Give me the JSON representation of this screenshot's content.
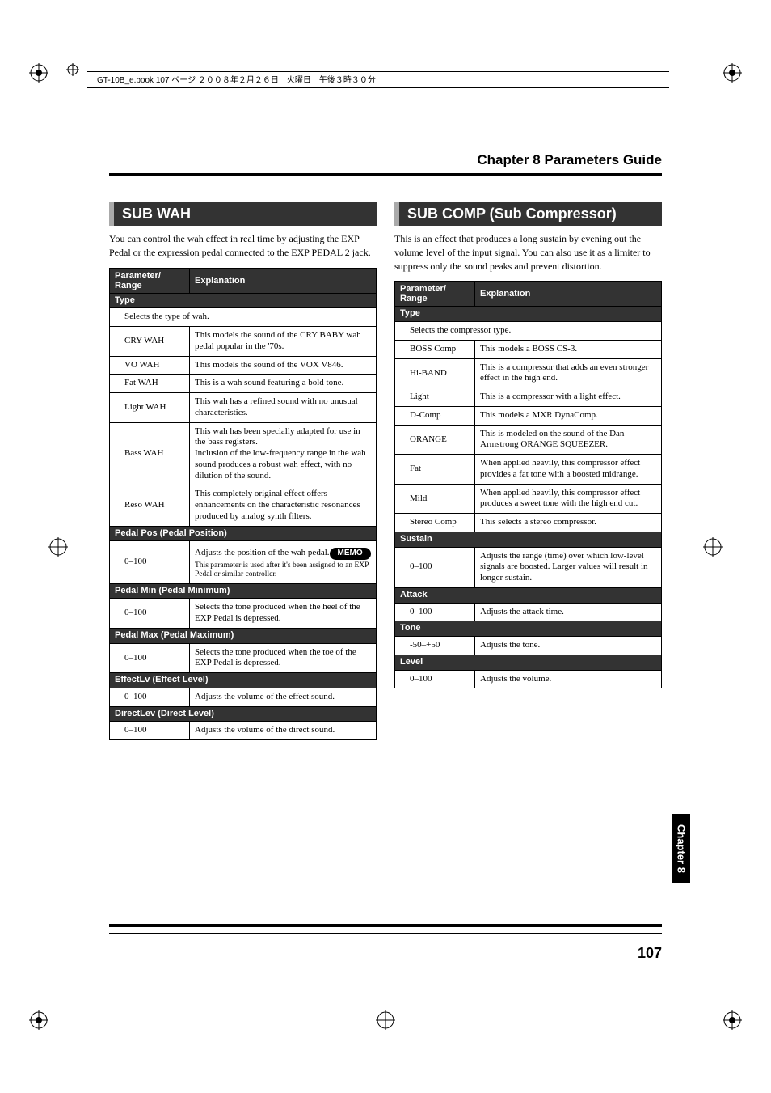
{
  "sheet_info": "GT-10B_e.book  107 ページ  ２００８年２月２６日　火曜日　午後３時３０分",
  "chapter_header": "Chapter 8 Parameters Guide",
  "side_tab": "Chapter 8",
  "page_number": "107",
  "left": {
    "title": "SUB WAH",
    "intro": "You can control the wah effect in real time by adjusting the EXP Pedal or the expression pedal connected to the EXP PEDAL 2 jack.",
    "table_header_param": "Parameter/​Range",
    "table_header_expl": "Explanation",
    "groups": [
      {
        "name": "Type",
        "desc": "Selects the type of wah.",
        "rows": [
          {
            "p": "CRY WAH",
            "e": "This models the sound of the CRY BABY wah pedal popular in the '70s."
          },
          {
            "p": "VO WAH",
            "e": "This models the sound of the VOX V846."
          },
          {
            "p": "Fat WAH",
            "e": "This is a wah sound featuring a bold tone."
          },
          {
            "p": "Light WAH",
            "e": "This wah has a refined sound with no unusual characteristics."
          },
          {
            "p": "Bass WAH",
            "e": "This wah has been specially adapted for use in the bass registers.\nInclusion of the low-frequency range in the wah sound produces a robust wah effect, with no dilution of the sound."
          },
          {
            "p": "Reso WAH",
            "e": "This completely original effect offers enhancements on the characteristic resonances produced by analog synth filters."
          }
        ]
      },
      {
        "name": "Pedal Pos (Pedal Position)",
        "rows": [
          {
            "p": "0–100",
            "e": "Adjusts the position of the wah pedal.",
            "memo": "MEMO",
            "memo_text": "This parameter is used after it's been assigned to an EXP Pedal or similar controller."
          }
        ]
      },
      {
        "name": "Pedal Min (Pedal Minimum)",
        "rows": [
          {
            "p": "0–100",
            "e": "Selects the tone produced when the heel of the EXP Pedal is depressed."
          }
        ]
      },
      {
        "name": "Pedal Max (Pedal Maximum)",
        "rows": [
          {
            "p": "0–100",
            "e": "Selects the tone produced when the toe of the EXP Pedal is depressed."
          }
        ]
      },
      {
        "name": "EffectLv (Effect Level)",
        "rows": [
          {
            "p": "0–100",
            "e": "Adjusts the volume of the effect sound."
          }
        ]
      },
      {
        "name": "DirectLev (Direct Level)",
        "rows": [
          {
            "p": "0–100",
            "e": "Adjusts the volume of the direct sound."
          }
        ]
      }
    ]
  },
  "right": {
    "title": "SUB COMP (Sub Compressor)",
    "intro": "This is an effect that produces a long sustain by evening out the volume level of the input signal. You can also use it as a limiter to suppress only the sound peaks and prevent distortion.",
    "table_header_param": "Parameter/​Range",
    "table_header_expl": "Explanation",
    "groups": [
      {
        "name": "Type",
        "desc": "Selects the compressor type.",
        "rows": [
          {
            "p": "BOSS Comp",
            "e": "This models a BOSS CS-3."
          },
          {
            "p": "Hi-BAND",
            "e": "This is a compressor that adds an even stronger effect in the high end."
          },
          {
            "p": "Light",
            "e": "This is a compressor with a light effect."
          },
          {
            "p": "D-Comp",
            "e": "This models a MXR DynaComp."
          },
          {
            "p": "ORANGE",
            "e": "This is modeled on the sound of the Dan Armstrong ORANGE SQUEEZER."
          },
          {
            "p": "Fat",
            "e": "When applied heavily, this compressor effect provides a fat tone with a boosted midrange."
          },
          {
            "p": "Mild",
            "e": "When applied heavily, this compressor effect produces a sweet tone with the high end cut."
          },
          {
            "p": "Stereo Comp",
            "e": "This selects a stereo compressor."
          }
        ]
      },
      {
        "name": "Sustain",
        "rows": [
          {
            "p": "0–100",
            "e": "Adjusts the range (time) over which low-level signals are boosted. Larger values will result in longer sustain."
          }
        ]
      },
      {
        "name": "Attack",
        "rows": [
          {
            "p": "0–100",
            "e": "Adjusts the attack time."
          }
        ]
      },
      {
        "name": "Tone",
        "rows": [
          {
            "p": "-50–+50",
            "e": "Adjusts the tone."
          }
        ]
      },
      {
        "name": "Level",
        "rows": [
          {
            "p": "0–100",
            "e": "Adjusts the volume."
          }
        ]
      }
    ]
  }
}
